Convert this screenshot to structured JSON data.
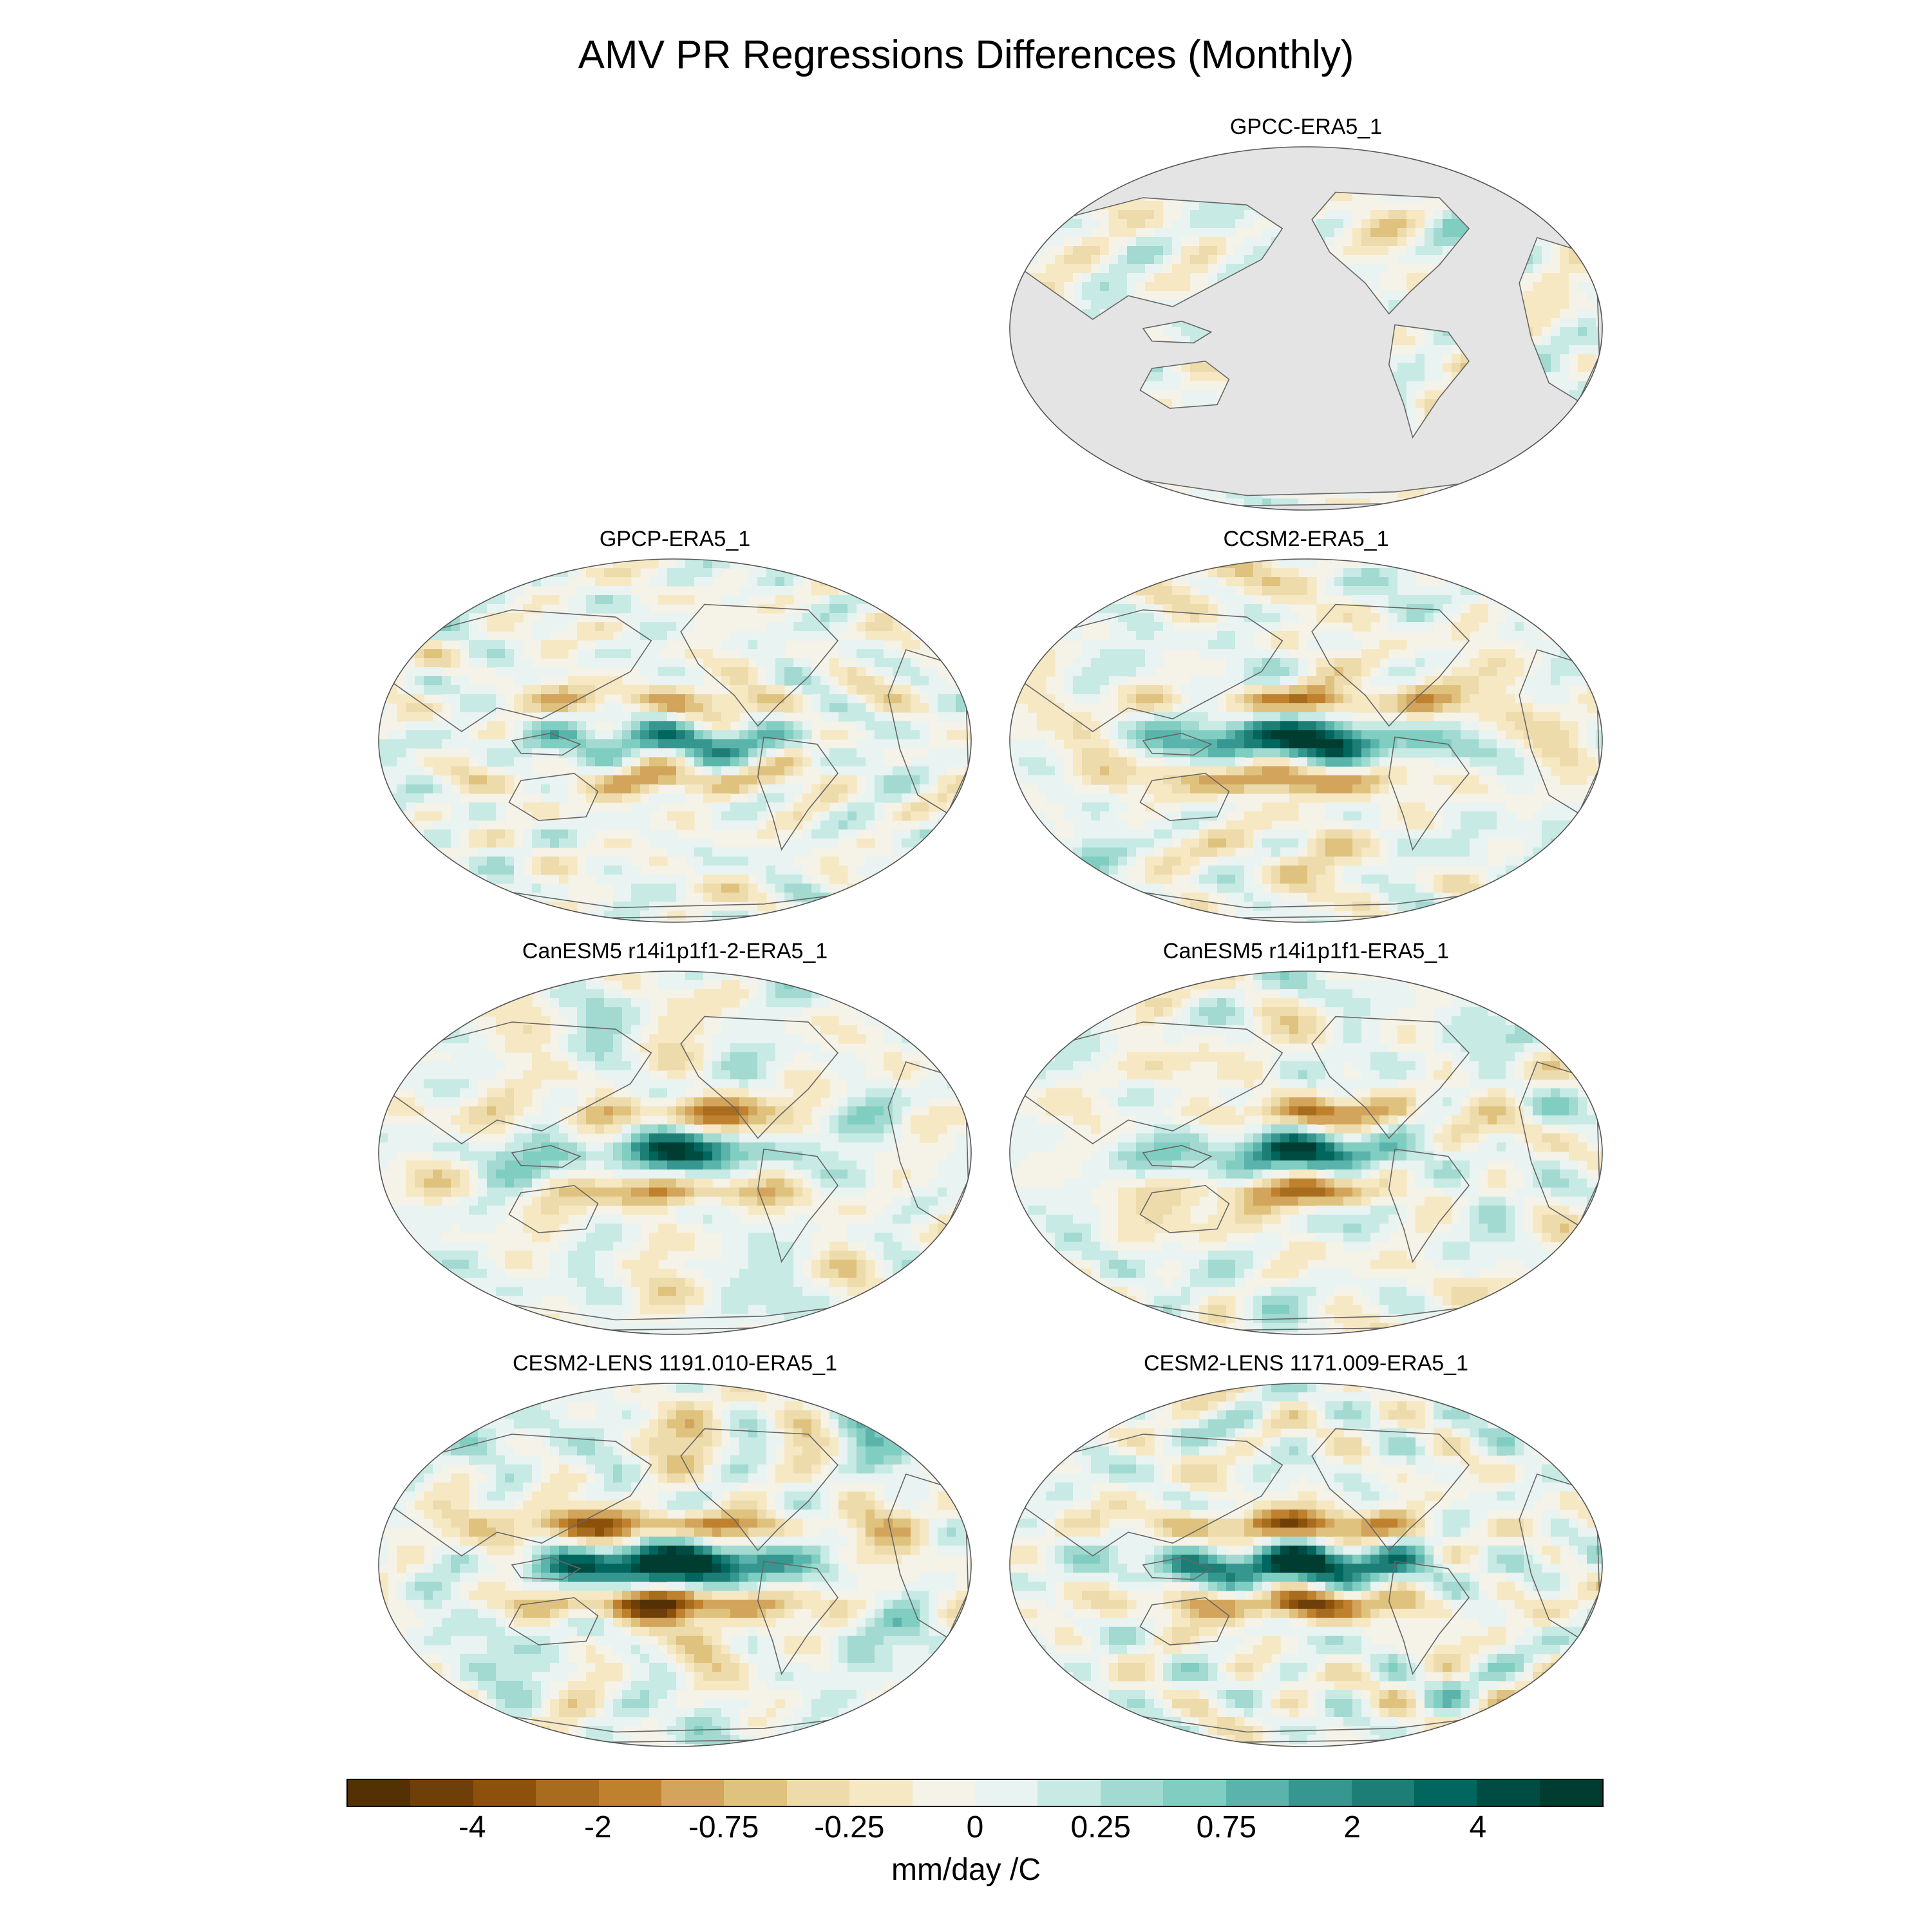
{
  "title": "AMV PR Regressions Differences (Monthly)",
  "panels": [
    {
      "title": "GPCC-ERA5_1",
      "kind": "land"
    },
    {
      "title": "GPCP-ERA5_1",
      "kind": "full"
    },
    {
      "title": "CCSM2-ERA5_1",
      "kind": "full"
    },
    {
      "title": "CanESM5 r14i1p1f1-2-ERA5_1",
      "kind": "full"
    },
    {
      "title": "CanESM5 r14i1p1f1-ERA5_1",
      "kind": "full"
    },
    {
      "title": "CESM2-LENS 1191.010-ERA5_1",
      "kind": "full"
    },
    {
      "title": "CESM2-LENS 1171.009-ERA5_1",
      "kind": "full"
    }
  ],
  "colorbar": {
    "label": "mm/day /C",
    "colors": [
      "#543005",
      "#6f3f0a",
      "#8c510a",
      "#a86c1f",
      "#bf812d",
      "#d2a45c",
      "#dfc27d",
      "#eddbac",
      "#f6e8c3",
      "#f5f2e8",
      "#e9f3f1",
      "#c7eae5",
      "#a2d9d1",
      "#80cdc1",
      "#5ab4ac",
      "#35978f",
      "#1d7e76",
      "#01665e",
      "#004c43",
      "#003c30"
    ],
    "ticks": [
      "-4",
      "-2",
      "-0.75",
      "-0.25",
      "0",
      "0.25",
      "0.75",
      "2",
      "4"
    ]
  }
}
